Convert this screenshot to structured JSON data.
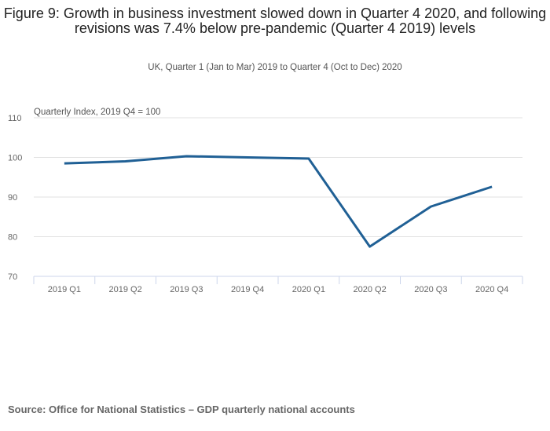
{
  "chart_data": {
    "type": "line",
    "title": "Figure 9: Growth in business investment slowed down in Quarter 4 2020, and following revisions was 7.4% below pre-pandemic (Quarter 4 2019) levels",
    "subtitle": "UK, Quarter 1 (Jan to Mar) 2019 to Quarter 4 (Oct to Dec) 2020",
    "ylabel": "Quarterly Index, 2019 Q4 = 100",
    "xlabel": "",
    "categories": [
      "2019 Q1",
      "2019 Q2",
      "2019 Q3",
      "2019 Q4",
      "2020 Q1",
      "2020 Q2",
      "2020 Q3",
      "2020 Q4"
    ],
    "series": [
      {
        "name": "Business investment",
        "values": [
          98.5,
          99.0,
          100.3,
          100.0,
          99.7,
          77.5,
          87.6,
          92.6
        ],
        "color": "#206095"
      }
    ],
    "ylim": [
      70,
      110
    ],
    "yticks": [
      70,
      80,
      90,
      100,
      110
    ],
    "grid": true,
    "source": "Source: Office for National Statistics – GDP quarterly national accounts"
  }
}
